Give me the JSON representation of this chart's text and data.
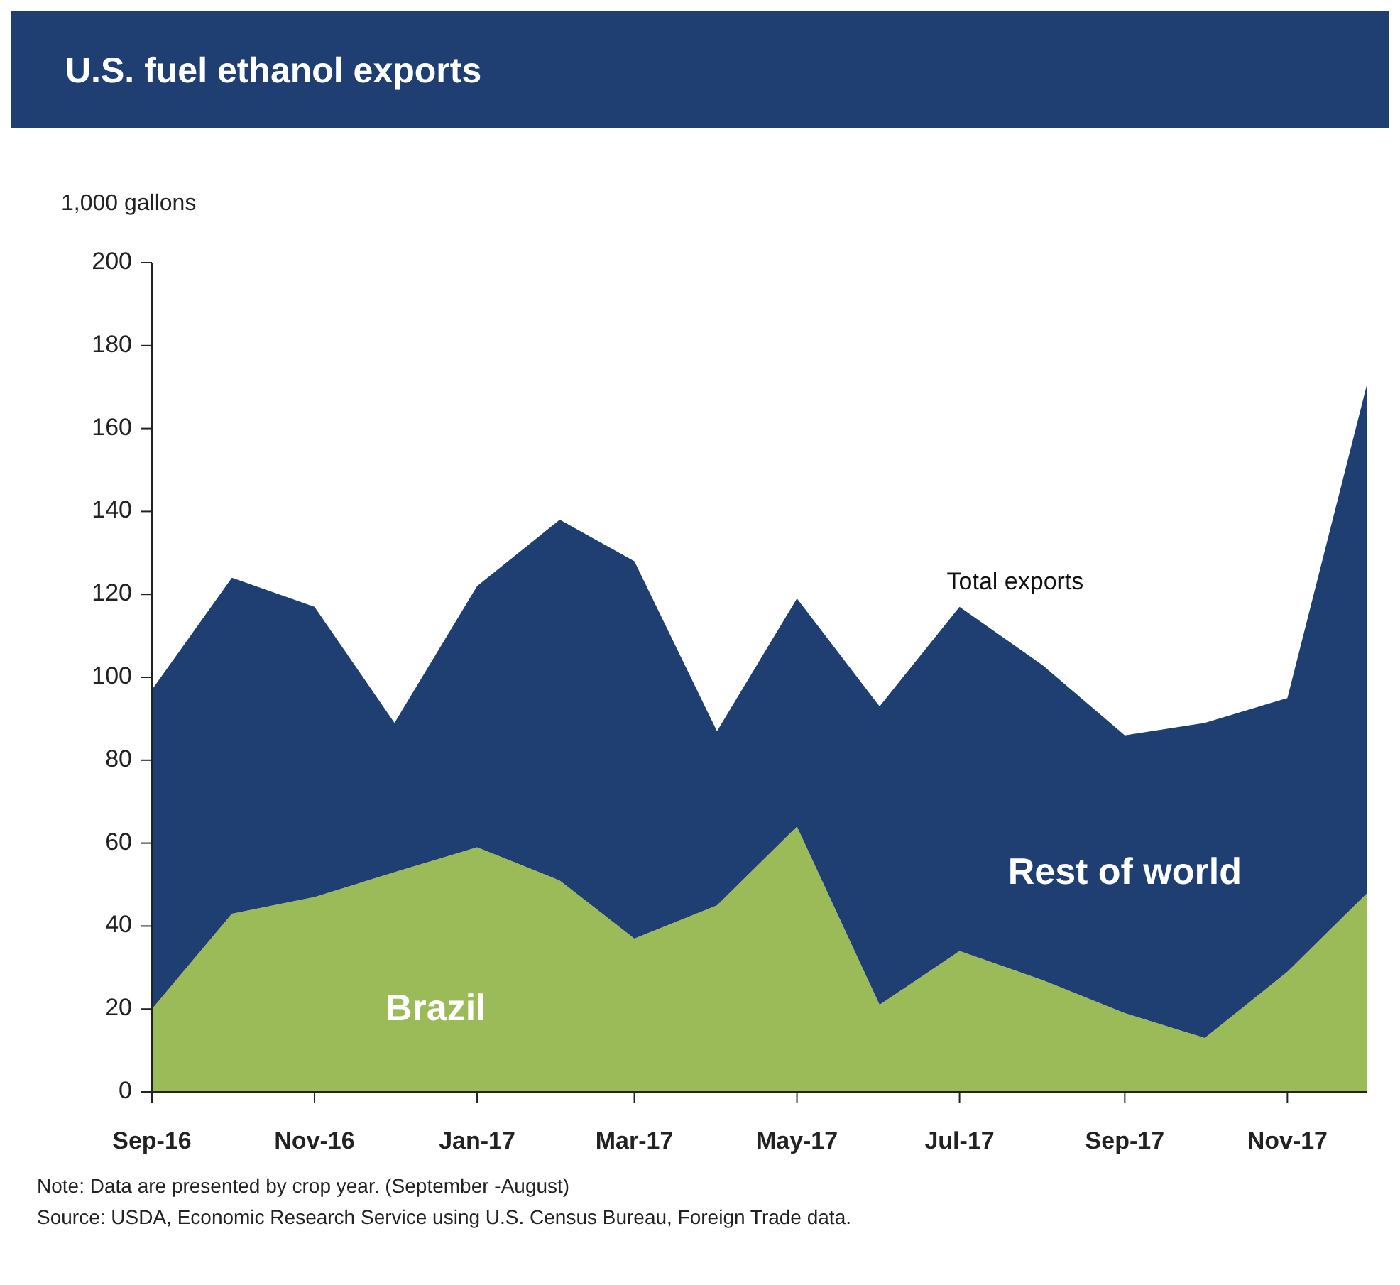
{
  "chart_data": {
    "type": "area",
    "stacked": true,
    "title": "U.S. fuel ethanol exports",
    "ylabel": "1,000 gallons",
    "x": [
      "2016-09",
      "2016-10",
      "2016-11",
      "2016-12",
      "2017-01",
      "2017-02",
      "2017-03",
      "2017-04",
      "2017-05",
      "2017-06",
      "2017-07",
      "2017-08",
      "2017-09",
      "2017-10",
      "2017-11",
      "2017-12"
    ],
    "series": [
      {
        "name": "Brazil",
        "color": "#9bbb59",
        "values": [
          20,
          43,
          47,
          53,
          59,
          51,
          37,
          45,
          64,
          21,
          34,
          27,
          19,
          13,
          29,
          48
        ]
      },
      {
        "name": "Rest of world",
        "color": "#1f3f73",
        "values": [
          77,
          81,
          70,
          36,
          63,
          87,
          91,
          42,
          55,
          72,
          83,
          76,
          67,
          76,
          66,
          123
        ]
      }
    ],
    "xlim": [
      "2016-09",
      "2017-12"
    ],
    "xticks": [
      {
        "value": "2016-09",
        "label": "Sep-16"
      },
      {
        "value": "2016-11",
        "label": "Nov-16"
      },
      {
        "value": "2017-01",
        "label": "Jan-17"
      },
      {
        "value": "2017-03",
        "label": "Mar-17"
      },
      {
        "value": "2017-05",
        "label": "May-17"
      },
      {
        "value": "2017-07",
        "label": "Jul-17"
      },
      {
        "value": "2017-09",
        "label": "Sep-17"
      },
      {
        "value": "2017-11",
        "label": "Nov-17"
      }
    ],
    "ylim": [
      0,
      200
    ],
    "yticks": [
      0,
      20,
      40,
      60,
      80,
      100,
      120,
      140,
      160,
      180,
      200
    ],
    "annotations": [
      "Total exports",
      "Note: Data are presented by crop year. (September -August)",
      "Source: USDA, Economic Research Service using U.S. Census Bureau, Foreign Trade data."
    ]
  }
}
